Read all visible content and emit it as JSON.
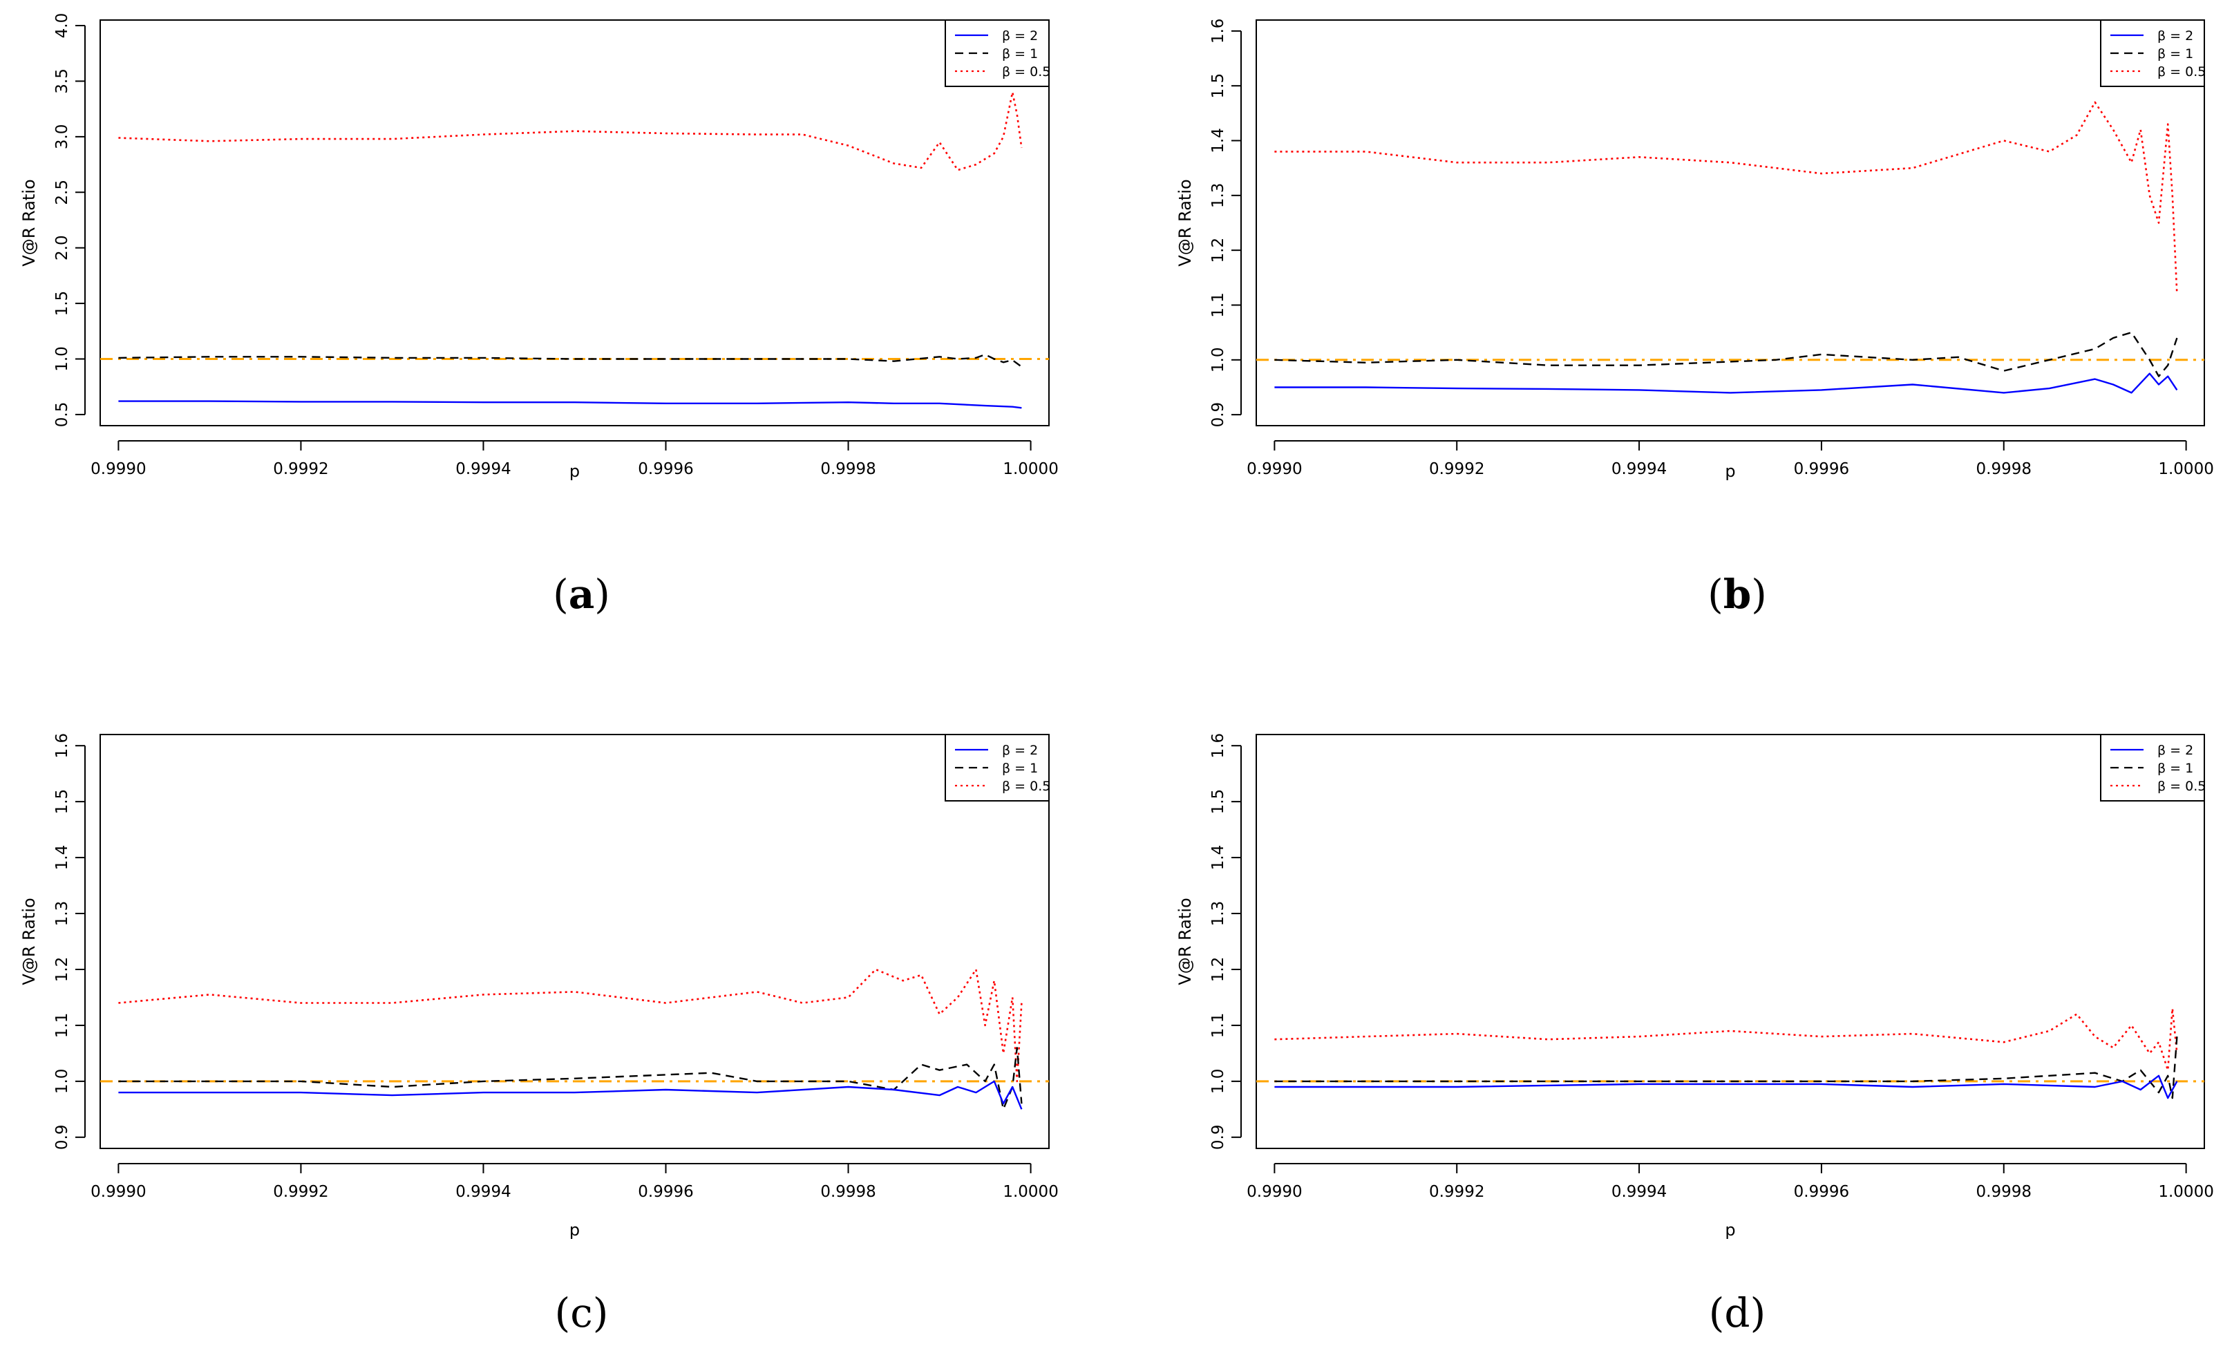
{
  "chart_data": [
    {
      "panel": "a",
      "type": "line",
      "caption_open": "(",
      "caption_letter": "a",
      "caption_close": ")",
      "caption_bold": true,
      "xlabel": "p",
      "ylabel": "V@R Ratio",
      "xlim": [
        0.99898,
        1.00002
      ],
      "ylim": [
        0.4,
        4.05
      ],
      "xticks": [
        0.999,
        0.9992,
        0.9994,
        0.9996,
        0.9998,
        1.0
      ],
      "xtick_labels": [
        "0.9990",
        "0.9992",
        "0.9994",
        "0.9996",
        "0.9998",
        "1.0000"
      ],
      "yticks": [
        0.5,
        1.0,
        1.5,
        2.0,
        2.5,
        3.0,
        3.5,
        4.0
      ],
      "ytick_labels": [
        "0.5",
        "1.0",
        "1.5",
        "2.0",
        "2.5",
        "3.0",
        "3.5",
        "4.0"
      ],
      "reference_line": {
        "y": 1.0,
        "color": "#FFA500",
        "style": "dash-dot"
      },
      "legend": {
        "position": "top-right"
      },
      "series": [
        {
          "name": "β = 2",
          "color": "#0000FF",
          "style": "solid",
          "x": [
            0.999,
            0.9991,
            0.9992,
            0.9993,
            0.9994,
            0.9995,
            0.9996,
            0.9997,
            0.9998,
            0.99985,
            0.9999,
            0.99995,
            0.99998,
            0.99999
          ],
          "values": [
            0.62,
            0.62,
            0.615,
            0.615,
            0.61,
            0.61,
            0.6,
            0.6,
            0.61,
            0.6,
            0.6,
            0.58,
            0.57,
            0.56
          ]
        },
        {
          "name": "β = 1",
          "color": "#000000",
          "style": "dashed",
          "x": [
            0.999,
            0.9991,
            0.9992,
            0.9993,
            0.9994,
            0.9995,
            0.9996,
            0.9997,
            0.9998,
            0.99985,
            0.9999,
            0.99992,
            0.99994,
            0.99995,
            0.99996,
            0.99997,
            0.99998,
            0.99999
          ],
          "values": [
            1.01,
            1.02,
            1.02,
            1.01,
            1.01,
            1.0,
            1.0,
            1.0,
            1.0,
            0.98,
            1.02,
            1.0,
            1.01,
            1.04,
            1.0,
            0.97,
            0.99,
            0.93
          ]
        },
        {
          "name": "β = 0.5",
          "color": "#FF0000",
          "style": "dotted",
          "x": [
            0.999,
            0.9991,
            0.9992,
            0.9993,
            0.9994,
            0.9995,
            0.9996,
            0.9997,
            0.99975,
            0.9998,
            0.99985,
            0.99988,
            0.9999,
            0.99992,
            0.99994,
            0.99996,
            0.99997,
            0.99998,
            0.999985,
            0.99999
          ],
          "values": [
            2.99,
            2.96,
            2.98,
            2.98,
            3.02,
            3.05,
            3.03,
            3.02,
            3.02,
            2.92,
            2.76,
            2.72,
            2.95,
            2.7,
            2.75,
            2.85,
            3.0,
            3.4,
            3.2,
            2.9
          ]
        }
      ]
    },
    {
      "panel": "b",
      "type": "line",
      "caption_open": "(",
      "caption_letter": "b",
      "caption_close": ")",
      "caption_bold": true,
      "xlabel": "p",
      "ylabel": "V@R Ratio",
      "xlim": [
        0.99898,
        1.00002
      ],
      "ylim": [
        0.88,
        1.62
      ],
      "xticks": [
        0.999,
        0.9992,
        0.9994,
        0.9996,
        0.9998,
        1.0
      ],
      "xtick_labels": [
        "0.9990",
        "0.9992",
        "0.9994",
        "0.9996",
        "0.9998",
        "1.0000"
      ],
      "yticks": [
        0.9,
        1.0,
        1.1,
        1.2,
        1.3,
        1.4,
        1.5,
        1.6
      ],
      "ytick_labels": [
        "0.9",
        "1.0",
        "1.1",
        "1.2",
        "1.3",
        "1.4",
        "1.5",
        "1.6"
      ],
      "reference_line": {
        "y": 1.0,
        "color": "#FFA500",
        "style": "dash-dot"
      },
      "legend": {
        "position": "top-right"
      },
      "series": [
        {
          "name": "β = 2",
          "color": "#0000FF",
          "style": "solid",
          "x": [
            0.999,
            0.9991,
            0.9992,
            0.9993,
            0.9994,
            0.9995,
            0.9996,
            0.9997,
            0.9998,
            0.99985,
            0.9999,
            0.99992,
            0.99994,
            0.99996,
            0.99997,
            0.99998,
            0.99999
          ],
          "values": [
            0.95,
            0.95,
            0.948,
            0.947,
            0.945,
            0.94,
            0.945,
            0.955,
            0.94,
            0.948,
            0.965,
            0.955,
            0.94,
            0.975,
            0.955,
            0.97,
            0.945
          ]
        },
        {
          "name": "β = 1",
          "color": "#000000",
          "style": "dashed",
          "x": [
            0.999,
            0.9991,
            0.9992,
            0.9993,
            0.9994,
            0.99955,
            0.9996,
            0.9997,
            0.99975,
            0.9998,
            0.99985,
            0.9999,
            0.99992,
            0.99994,
            0.99996,
            0.99997,
            0.99998,
            0.99999
          ],
          "values": [
            1.0,
            0.995,
            1.0,
            0.99,
            0.99,
            1.0,
            1.01,
            1.0,
            1.005,
            0.98,
            1.0,
            1.02,
            1.04,
            1.05,
            1.0,
            0.97,
            0.99,
            1.04
          ]
        },
        {
          "name": "β = 0.5",
          "color": "#FF0000",
          "style": "dotted",
          "x": [
            0.999,
            0.9991,
            0.9992,
            0.9993,
            0.9994,
            0.9995,
            0.9996,
            0.9997,
            0.9998,
            0.99985,
            0.99988,
            0.9999,
            0.99992,
            0.99994,
            0.99995,
            0.99996,
            0.99997,
            0.99998,
            0.999985,
            0.99999
          ],
          "values": [
            1.38,
            1.38,
            1.36,
            1.36,
            1.37,
            1.36,
            1.34,
            1.35,
            1.4,
            1.38,
            1.41,
            1.47,
            1.42,
            1.36,
            1.42,
            1.3,
            1.25,
            1.43,
            1.3,
            1.12
          ]
        }
      ]
    },
    {
      "panel": "c",
      "type": "line",
      "caption_open": "(",
      "caption_letter": "c",
      "caption_close": ")",
      "caption_bold": false,
      "xlabel": "p",
      "ylabel": "V@R Ratio",
      "xlim": [
        0.99898,
        1.00002
      ],
      "ylim": [
        0.88,
        1.62
      ],
      "xticks": [
        0.999,
        0.9992,
        0.9994,
        0.9996,
        0.9998,
        1.0
      ],
      "xtick_labels": [
        "0.9990",
        "0.9992",
        "0.9994",
        "0.9996",
        "0.9998",
        "1.0000"
      ],
      "yticks": [
        0.9,
        1.0,
        1.1,
        1.2,
        1.3,
        1.4,
        1.5,
        1.6
      ],
      "ytick_labels": [
        "0.9",
        "1.0",
        "1.1",
        "1.2",
        "1.3",
        "1.4",
        "1.5",
        "1.6"
      ],
      "reference_line": {
        "y": 1.0,
        "color": "#FFA500",
        "style": "dash-dot"
      },
      "legend": {
        "position": "top-right"
      },
      "series": [
        {
          "name": "β = 2",
          "color": "#0000FF",
          "style": "solid",
          "x": [
            0.999,
            0.9991,
            0.9992,
            0.9993,
            0.9994,
            0.9995,
            0.9996,
            0.9997,
            0.9998,
            0.99985,
            0.9999,
            0.99992,
            0.99994,
            0.99996,
            0.99997,
            0.99998,
            0.99999
          ],
          "values": [
            0.98,
            0.98,
            0.98,
            0.975,
            0.98,
            0.98,
            0.985,
            0.98,
            0.99,
            0.985,
            0.975,
            0.99,
            0.98,
            1.0,
            0.96,
            0.99,
            0.95
          ]
        },
        {
          "name": "β = 1",
          "color": "#000000",
          "style": "dashed",
          "x": [
            0.999,
            0.9991,
            0.9992,
            0.9993,
            0.9994,
            0.9995,
            0.99965,
            0.9997,
            0.9998,
            0.99985,
            0.99988,
            0.9999,
            0.99993,
            0.99995,
            0.99996,
            0.99997,
            0.99998,
            0.999985,
            0.99999
          ],
          "values": [
            1.0,
            1.0,
            1.0,
            0.99,
            1.0,
            1.005,
            1.015,
            1.0,
            1.0,
            0.985,
            1.03,
            1.02,
            1.03,
            1.0,
            1.03,
            0.95,
            0.99,
            1.06,
            0.96
          ]
        },
        {
          "name": "β = 0.5",
          "color": "#FF0000",
          "style": "dotted",
          "x": [
            0.999,
            0.9991,
            0.9992,
            0.9993,
            0.9994,
            0.9995,
            0.9996,
            0.9997,
            0.99975,
            0.9998,
            0.99983,
            0.99986,
            0.99988,
            0.9999,
            0.99992,
            0.99994,
            0.99995,
            0.99996,
            0.99997,
            0.99998,
            0.999985,
            0.99999
          ],
          "values": [
            1.14,
            1.155,
            1.14,
            1.14,
            1.155,
            1.16,
            1.14,
            1.16,
            1.14,
            1.15,
            1.2,
            1.18,
            1.19,
            1.12,
            1.15,
            1.2,
            1.1,
            1.18,
            1.05,
            1.15,
            1.0,
            1.14
          ]
        }
      ]
    },
    {
      "panel": "d",
      "type": "line",
      "caption_open": "(",
      "caption_letter": "d",
      "caption_close": ")",
      "caption_bold": false,
      "xlabel": "p",
      "ylabel": "V@R Ratio",
      "xlim": [
        0.99898,
        1.00002
      ],
      "ylim": [
        0.88,
        1.62
      ],
      "xticks": [
        0.999,
        0.9992,
        0.9994,
        0.9996,
        0.9998,
        1.0
      ],
      "xtick_labels": [
        "0.9990",
        "0.9992",
        "0.9994",
        "0.9996",
        "0.9998",
        "1.0000"
      ],
      "yticks": [
        0.9,
        1.0,
        1.1,
        1.2,
        1.3,
        1.4,
        1.5,
        1.6
      ],
      "ytick_labels": [
        "0.9",
        "1.0",
        "1.1",
        "1.2",
        "1.3",
        "1.4",
        "1.5",
        "1.6"
      ],
      "reference_line": {
        "y": 1.0,
        "color": "#FFA500",
        "style": "dash-dot"
      },
      "legend": {
        "position": "top-right"
      },
      "series": [
        {
          "name": "β = 2",
          "color": "#0000FF",
          "style": "solid",
          "x": [
            0.999,
            0.9992,
            0.9994,
            0.9996,
            0.9997,
            0.9998,
            0.9999,
            0.99993,
            0.99995,
            0.99997,
            0.99998,
            0.99999
          ],
          "values": [
            0.99,
            0.99,
            0.995,
            0.995,
            0.99,
            0.995,
            0.99,
            1.0,
            0.985,
            1.01,
            0.97,
            1.0
          ]
        },
        {
          "name": "β = 1",
          "color": "#000000",
          "style": "dashed",
          "x": [
            0.999,
            0.9992,
            0.9994,
            0.9996,
            0.9997,
            0.9998,
            0.99985,
            0.9999,
            0.99993,
            0.99995,
            0.99997,
            0.99998,
            0.999985,
            0.99999
          ],
          "values": [
            1.0,
            1.0,
            1.0,
            1.0,
            1.0,
            1.005,
            1.01,
            1.015,
            1.0,
            1.02,
            0.98,
            1.01,
            0.97,
            1.08
          ]
        },
        {
          "name": "β = 0.5",
          "color": "#FF0000",
          "style": "dotted",
          "x": [
            0.999,
            0.9991,
            0.9992,
            0.9993,
            0.9994,
            0.9995,
            0.9996,
            0.9997,
            0.9998,
            0.99985,
            0.99988,
            0.9999,
            0.99992,
            0.99994,
            0.99996,
            0.99997,
            0.99998,
            0.999985,
            0.99999
          ],
          "values": [
            1.075,
            1.08,
            1.085,
            1.075,
            1.08,
            1.09,
            1.08,
            1.085,
            1.07,
            1.09,
            1.12,
            1.08,
            1.06,
            1.1,
            1.05,
            1.07,
            1.02,
            1.13,
            1.05
          ]
        }
      ]
    }
  ]
}
